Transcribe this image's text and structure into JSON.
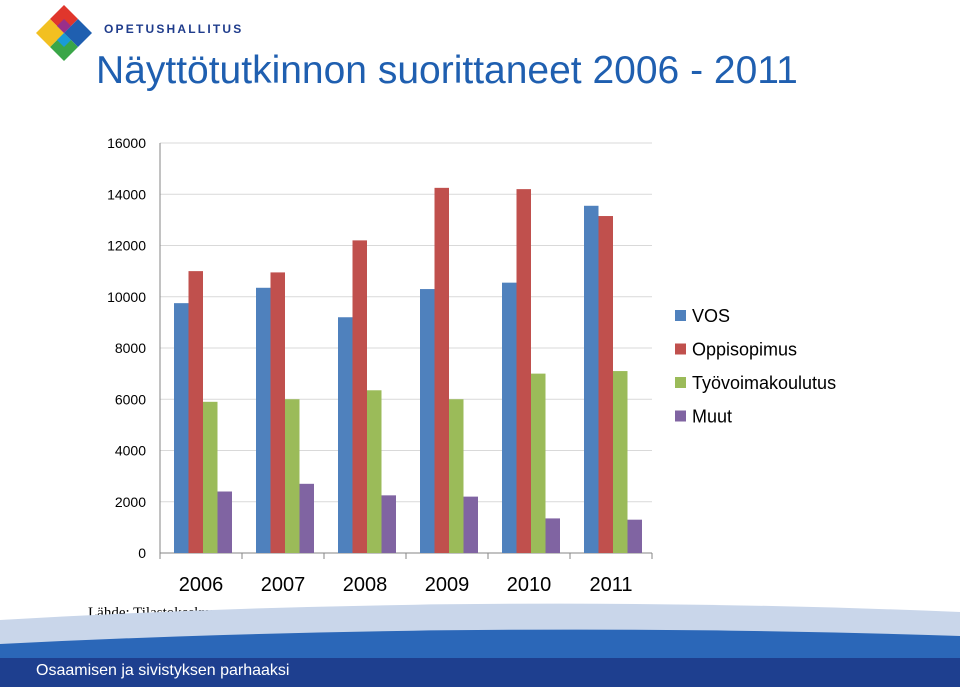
{
  "header": {
    "org_name": "OPETUSHALLITUS",
    "title": "Näyttötutkinnon suorittaneet 2006 - 2011",
    "logo": "opetushallitus-diamond-logo"
  },
  "source": "Lähde: Tilastokeskus",
  "footer": {
    "text": "Osaamisen ja sivistyksen parhaaksi",
    "colors": [
      "#1e3f8f",
      "#2b67b8",
      "#9fb8dc"
    ]
  },
  "chart_data": {
    "type": "bar",
    "title": "",
    "xlabel": "",
    "ylabel": "",
    "categories": [
      "2006",
      "2007",
      "2008",
      "2009",
      "2010",
      "2011"
    ],
    "ylim": [
      0,
      16000
    ],
    "yticks": [
      0,
      2000,
      4000,
      6000,
      8000,
      10000,
      12000,
      14000,
      16000
    ],
    "grid": true,
    "legend": "right",
    "series": [
      {
        "name": "VOS",
        "color": "#4f81bd",
        "values": [
          9750,
          10350,
          9200,
          10300,
          10550,
          13550
        ]
      },
      {
        "name": "Oppisopimus",
        "color": "#c0504d",
        "values": [
          11000,
          10950,
          12200,
          14250,
          14200,
          13150
        ]
      },
      {
        "name": "Työvoimakoulutus",
        "color": "#9bbb59",
        "values": [
          5900,
          6000,
          6350,
          6000,
          7000,
          7100
        ]
      },
      {
        "name": "Muut",
        "color": "#8064a2",
        "values": [
          2400,
          2700,
          2250,
          2200,
          1350,
          1300
        ]
      }
    ]
  }
}
